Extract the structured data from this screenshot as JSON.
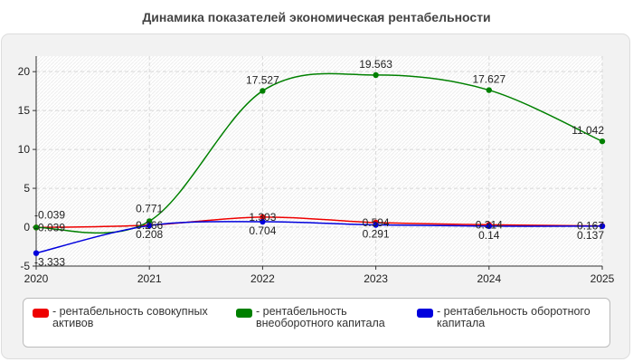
{
  "chart_data": {
    "type": "line",
    "title": "Динамика показателей экономическая рентабельности",
    "x": [
      "2020",
      "2021",
      "2022",
      "2023",
      "2024",
      "2025"
    ],
    "ylim": [
      -5,
      22
    ],
    "yticks": [
      -5,
      0,
      5,
      10,
      15,
      20
    ],
    "grid": true,
    "legend_position": "bottom",
    "series": [
      {
        "name": "- рентабельность совокупных активов",
        "color": "#ee0000",
        "values": [
          -0.039,
          0.266,
          1.303,
          0.594,
          0.314,
          0.167
        ],
        "labels": [
          "-0.039",
          "0.266",
          "1.303",
          "0.594",
          "0.314",
          "0.167"
        ]
      },
      {
        "name": "- рентабельность внеоборотного капитала",
        "color": "#008000",
        "values": [
          -0.039,
          0.771,
          17.527,
          19.563,
          17.627,
          11.042
        ],
        "labels": [
          "-0.039",
          "0.771",
          "17.527",
          "19.563",
          "17.627",
          "11.042"
        ]
      },
      {
        "name": "- рентабельность оборотного капитала",
        "color": "#0000dd",
        "values": [
          -3.333,
          0.208,
          0.704,
          0.291,
          0.14,
          0.137
        ],
        "labels": [
          "-3.333",
          "0.208",
          "0.704",
          "0.291",
          "0.14",
          "0.137"
        ]
      }
    ]
  }
}
